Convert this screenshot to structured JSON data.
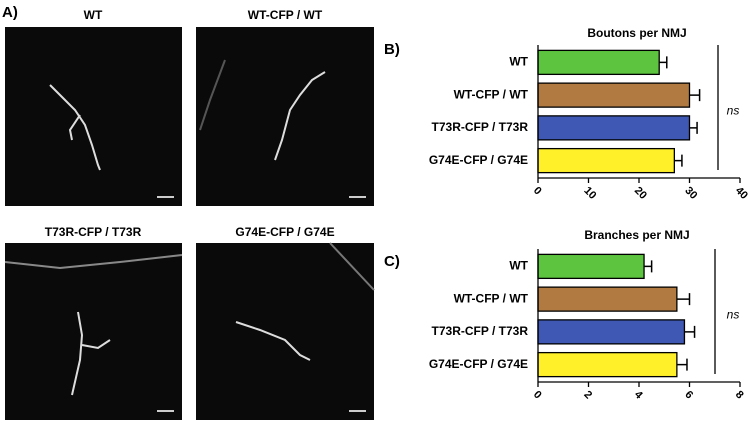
{
  "panel_labels": [
    "A)",
    "B)",
    "C)"
  ],
  "images": [
    {
      "caption": "WT"
    },
    {
      "caption": "WT-CFP / WT"
    },
    {
      "caption": "T73R-CFP / T73R"
    },
    {
      "caption": "G74E-CFP / G74E"
    }
  ],
  "chart_data": [
    {
      "type": "bar",
      "orientation": "horizontal",
      "title": "Boutons per NMJ",
      "categories": [
        "WT",
        "WT-CFP / WT",
        "T73R-CFP / T73R",
        "G74E-CFP / G74E"
      ],
      "values": [
        24,
        30,
        30,
        27
      ],
      "errors": [
        1.5,
        2,
        1.5,
        1.5
      ],
      "colors": [
        "#5cc43e",
        "#b07a40",
        "#3f58b4",
        "#fff02a"
      ],
      "xlim": [
        0,
        40
      ],
      "xticks": [
        0,
        10,
        20,
        30,
        40
      ],
      "annotation": "ns"
    },
    {
      "type": "bar",
      "orientation": "horizontal",
      "title": "Branches per NMJ",
      "categories": [
        "WT",
        "WT-CFP / WT",
        "T73R-CFP / T73R",
        "G74E-CFP / G74E"
      ],
      "values": [
        4.2,
        5.5,
        5.8,
        5.5
      ],
      "errors": [
        0.3,
        0.5,
        0.4,
        0.4
      ],
      "colors": [
        "#5cc43e",
        "#b07a40",
        "#3f58b4",
        "#fff02a"
      ],
      "xlim": [
        0,
        8
      ],
      "xticks": [
        0,
        2,
        4,
        6,
        8
      ],
      "annotation": "ns"
    }
  ]
}
